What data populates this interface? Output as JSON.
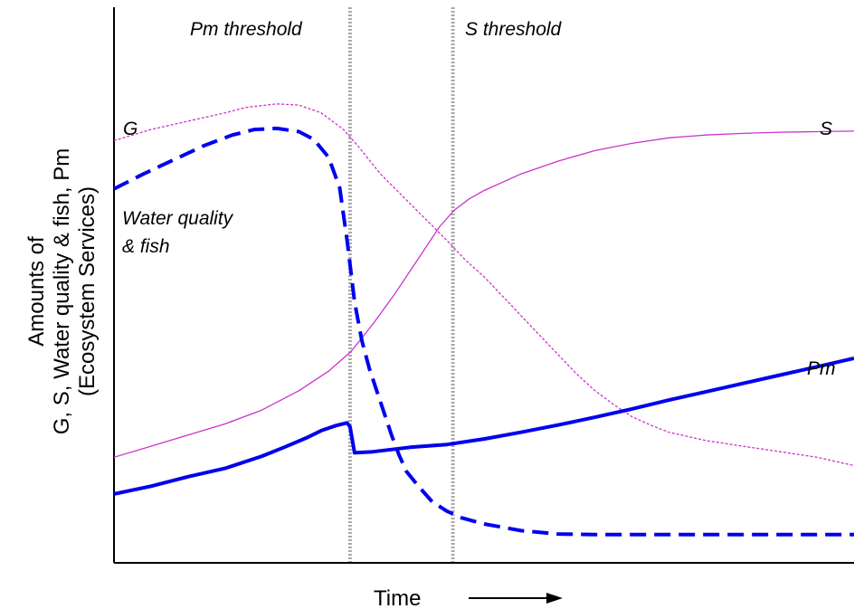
{
  "chart_data": {
    "type": "line",
    "xlabel": "Time",
    "ylabel": [
      "Amounts of",
      "G, S, Water quality & fish, Pm",
      "(Ecosystem Services)"
    ],
    "xlim": [
      0,
      100
    ],
    "ylim": [
      0,
      100
    ],
    "grid": false,
    "colors": {
      "pink": "#cc33cc",
      "blue": "#0000ee",
      "threshold": "#aaaaaa",
      "axis": "#000000"
    },
    "thresholds": [
      {
        "label": "Pm threshold",
        "x": 31.9
      },
      {
        "label": "S threshold",
        "x": 45.8
      }
    ],
    "series": [
      {
        "name": "G",
        "color": "#cc33cc",
        "style": "dotted",
        "weight": "thin",
        "points": [
          [
            0,
            76
          ],
          [
            5,
            78
          ],
          [
            10,
            79.5
          ],
          [
            15,
            81
          ],
          [
            18,
            82
          ],
          [
            22,
            82.6
          ],
          [
            25,
            82.4
          ],
          [
            28,
            81
          ],
          [
            31,
            78
          ],
          [
            33,
            75
          ],
          [
            36,
            70
          ],
          [
            39,
            66
          ],
          [
            42,
            62
          ],
          [
            45,
            58
          ],
          [
            47.5,
            54.5
          ],
          [
            50,
            51.5
          ],
          [
            52.5,
            48
          ],
          [
            55,
            44.5
          ],
          [
            57.5,
            41
          ],
          [
            60,
            37.5
          ],
          [
            62.5,
            34
          ],
          [
            65,
            31
          ],
          [
            67.5,
            28.5
          ],
          [
            70,
            26.3
          ],
          [
            72.5,
            24.8
          ],
          [
            75,
            23.5
          ],
          [
            80,
            22
          ],
          [
            85,
            21
          ],
          [
            90,
            20
          ],
          [
            95,
            19
          ],
          [
            100,
            17.5
          ]
        ]
      },
      {
        "name": "S",
        "color": "#cc33cc",
        "style": "solid",
        "weight": "thin",
        "points": [
          [
            0,
            19
          ],
          [
            5,
            21
          ],
          [
            10,
            23
          ],
          [
            15,
            25
          ],
          [
            20,
            27.5
          ],
          [
            25,
            31
          ],
          [
            29,
            34.5
          ],
          [
            32,
            38
          ],
          [
            35,
            43
          ],
          [
            38,
            48.5
          ],
          [
            41,
            54.5
          ],
          [
            44,
            60.5
          ],
          [
            46,
            63.5
          ],
          [
            48,
            65.5
          ],
          [
            50,
            67
          ],
          [
            55,
            70
          ],
          [
            60,
            72.3
          ],
          [
            65,
            74.2
          ],
          [
            70,
            75.5
          ],
          [
            75,
            76.5
          ],
          [
            80,
            77
          ],
          [
            85,
            77.3
          ],
          [
            90,
            77.5
          ],
          [
            95,
            77.6
          ],
          [
            100,
            77.7
          ]
        ]
      },
      {
        "name": "Water quality & fish",
        "color": "#0000ee",
        "style": "dashed",
        "weight": "thick",
        "points": [
          [
            0,
            67.3
          ],
          [
            4,
            70
          ],
          [
            8,
            72.5
          ],
          [
            12,
            75
          ],
          [
            16,
            77
          ],
          [
            19,
            78
          ],
          [
            22,
            78.2
          ],
          [
            25,
            77.6
          ],
          [
            27,
            76.2
          ],
          [
            29,
            73
          ],
          [
            30.5,
            67.5
          ],
          [
            31.5,
            58
          ],
          [
            32.5,
            47
          ],
          [
            33.5,
            40
          ],
          [
            34.5,
            35
          ],
          [
            35.5,
            31
          ],
          [
            36.5,
            27
          ],
          [
            37.5,
            23
          ],
          [
            38.5,
            19.5
          ],
          [
            39.5,
            16.5
          ],
          [
            41,
            14
          ],
          [
            43,
            11
          ],
          [
            45,
            9.3
          ],
          [
            47,
            8.1
          ],
          [
            50,
            7
          ],
          [
            55,
            5.8
          ],
          [
            60,
            5.2
          ],
          [
            65,
            5.1
          ],
          [
            70,
            5.1
          ],
          [
            80,
            5.1
          ],
          [
            90,
            5.1
          ],
          [
            100,
            5.1
          ]
        ]
      },
      {
        "name": "Pm",
        "color": "#0000ee",
        "style": "solid",
        "weight": "thick",
        "points": [
          [
            0,
            12.4
          ],
          [
            5,
            13.8
          ],
          [
            10,
            15.5
          ],
          [
            15,
            17
          ],
          [
            20,
            19.2
          ],
          [
            23,
            20.8
          ],
          [
            26,
            22.5
          ],
          [
            28,
            23.8
          ],
          [
            30,
            24.7
          ],
          [
            31.5,
            25.2
          ],
          [
            31.9,
            24.5
          ],
          [
            32.5,
            19.8
          ],
          [
            35,
            20
          ],
          [
            40,
            20.8
          ],
          [
            45,
            21.3
          ],
          [
            50,
            22.3
          ],
          [
            55,
            23.5
          ],
          [
            60,
            24.8
          ],
          [
            65,
            26.2
          ],
          [
            70,
            27.7
          ],
          [
            75,
            29.3
          ],
          [
            80,
            30.8
          ],
          [
            85,
            32.3
          ],
          [
            90,
            33.8
          ],
          [
            95,
            35.3
          ],
          [
            100,
            36.8
          ]
        ]
      }
    ],
    "annotations": [
      {
        "name": "label-g",
        "text": "G"
      },
      {
        "name": "label-s",
        "text": "S"
      },
      {
        "name": "label-wq-1",
        "text": "Water quality"
      },
      {
        "name": "label-wq-2",
        "text": "& fish"
      },
      {
        "name": "label-pm",
        "text": "Pm"
      }
    ]
  }
}
